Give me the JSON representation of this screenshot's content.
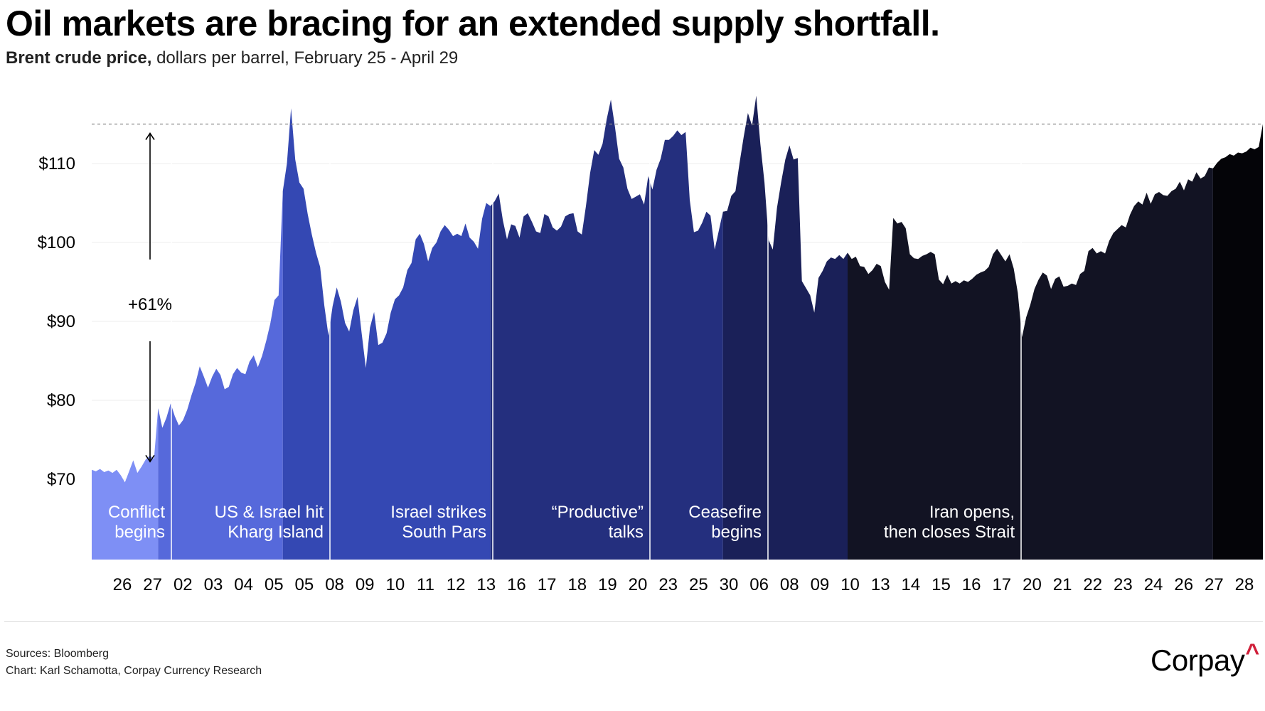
{
  "title": "Oil markets are bracing for an extended supply shortfall.",
  "subtitle_bold": "Brent crude price,",
  "subtitle_rest": " dollars per barrel, February 25 - April 29",
  "chart_data": {
    "type": "area",
    "title": "Oil markets are bracing for an extended supply shortfall.",
    "subtitle": "Brent crude price, dollars per barrel, February 25 - April 29",
    "ylim": [
      60,
      120
    ],
    "yticks": [
      70,
      80,
      90,
      100,
      110
    ],
    "ytick_labels": [
      "$70",
      "$80",
      "$90",
      "$100",
      "$110"
    ],
    "x_labels": [
      "26",
      "27",
      "02",
      "03",
      "04",
      "05",
      "05",
      "08",
      "09",
      "10",
      "11",
      "12",
      "13",
      "16",
      "17",
      "18",
      "19",
      "20",
      "23",
      "25",
      "30",
      "06",
      "08",
      "09",
      "10",
      "13",
      "14",
      "15",
      "16",
      "17",
      "20",
      "21",
      "22",
      "23",
      "24",
      "26",
      "27",
      "28"
    ],
    "reference_line": 115,
    "annotation": "+61%",
    "annotation_range": [
      71.5,
      115
    ],
    "series": [
      {
        "name": "Brent crude",
        "values": [
          71.2,
          71.0,
          71.3,
          70.9,
          71.1,
          70.8,
          71.2,
          70.5,
          69.6,
          71.0,
          72.4,
          70.8,
          71.6,
          72.5,
          73.0,
          72.6,
          79.0,
          76.5,
          77.8,
          79.6,
          78.0,
          76.8,
          77.5,
          78.8,
          80.6,
          82.2,
          84.3,
          83.0,
          81.6,
          83.0,
          84.0,
          83.2,
          81.4,
          81.7,
          83.3,
          84.1,
          83.5,
          83.3,
          84.9,
          85.7,
          84.2,
          85.6,
          87.5,
          89.7,
          92.7,
          93.3,
          106.5,
          110.0,
          117.0,
          110.5,
          107.6,
          106.8,
          103.6,
          101.0,
          98.7,
          96.9,
          92.0,
          88.2,
          91.9,
          94.3,
          92.5,
          89.8,
          88.7,
          91.4,
          93.1,
          88.5,
          84.1,
          89.2,
          91.2,
          87.0,
          87.3,
          88.5,
          91.1,
          92.8,
          93.3,
          94.3,
          96.5,
          97.4,
          100.4,
          101.1,
          99.8,
          97.6,
          99.3,
          100.0,
          101.4,
          102.2,
          101.6,
          100.8,
          101.1,
          100.8,
          102.4,
          100.6,
          100.1,
          99.2,
          103.0,
          105.0,
          104.6,
          105.2,
          106.2,
          102.8,
          100.4,
          102.3,
          102.1,
          100.6,
          103.3,
          103.7,
          102.6,
          101.4,
          101.2,
          103.6,
          103.3,
          101.9,
          101.5,
          102.0,
          103.3,
          103.6,
          103.7,
          101.4,
          101.0,
          104.6,
          108.8,
          111.7,
          111.1,
          112.5,
          115.6,
          118.1,
          114.6,
          110.6,
          109.5,
          106.8,
          105.5,
          105.8,
          106.1,
          104.8,
          108.4,
          106.7,
          109.2,
          110.6,
          113.0,
          113.0,
          113.5,
          114.2,
          113.6,
          114.0,
          105.4,
          101.3,
          101.5,
          102.5,
          103.9,
          103.4,
          99.1,
          101.5,
          103.9,
          104.0,
          105.9,
          106.5,
          110.1,
          113.4,
          116.4,
          114.8,
          118.6,
          112.5,
          107.6,
          100.3,
          99.1,
          104.4,
          107.6,
          110.5,
          112.3,
          110.5,
          110.7,
          95.1,
          94.2,
          93.3,
          91.1,
          95.5,
          96.4,
          97.6,
          98.1,
          97.9,
          98.4,
          97.9,
          98.7,
          97.9,
          98.2,
          97.0,
          96.9,
          96.0,
          96.5,
          97.3,
          97.0,
          95.0,
          94.0,
          103.1,
          102.4,
          102.6,
          101.8,
          98.5,
          98.0,
          97.9,
          98.3,
          98.5,
          98.8,
          98.5,
          95.3,
          94.7,
          95.9,
          94.8,
          95.1,
          94.8,
          95.2,
          95.0,
          95.4,
          95.9,
          96.2,
          96.4,
          96.9,
          98.5,
          99.2,
          98.4,
          97.6,
          98.5,
          96.7,
          93.6,
          88.0,
          90.5,
          92.1,
          94.1,
          95.3,
          96.2,
          95.8,
          94.1,
          95.4,
          95.7,
          94.4,
          94.5,
          94.8,
          94.6,
          96.0,
          96.4,
          98.9,
          99.3,
          98.6,
          98.9,
          98.6,
          100.2,
          101.2,
          101.7,
          102.2,
          101.9,
          103.5,
          104.6,
          105.2,
          104.8,
          106.3,
          104.9,
          106.1,
          106.4,
          106.0,
          105.9,
          106.5,
          106.8,
          107.7,
          106.6,
          108.0,
          107.7,
          108.9,
          108.1,
          108.4,
          109.5,
          109.4,
          110.1,
          110.6,
          110.8,
          111.2,
          111.0,
          111.4,
          111.3,
          111.5,
          112.0,
          111.8,
          112.1,
          115.0
        ]
      }
    ],
    "regions": [
      {
        "label_lines": [
          "Conflict",
          "begins"
        ],
        "color": "#7e8ff5"
      },
      {
        "label_lines": [
          "US & Israel hit",
          "Kharg Island"
        ],
        "color": "#5669db"
      },
      {
        "label_lines": [
          "Israel strikes",
          "South Pars"
        ],
        "color": "#3448b3"
      },
      {
        "label_lines": [
          "“Productive”",
          "talks"
        ],
        "color": "#242f7e"
      },
      {
        "label_lines": [
          "Ceasefire",
          "begins"
        ],
        "color": "#1a2058"
      },
      {
        "label_lines": [
          "Iran opens,",
          "then closes Strait"
        ],
        "color": "#121323"
      },
      {
        "label_lines": [
          "",
          ""
        ],
        "color": "#040408"
      }
    ]
  },
  "footer": {
    "sources": "Sources: Bloomberg",
    "credit": "Chart: Karl Schamotta, Corpay Currency Research"
  },
  "logo": {
    "text": "Corpay",
    "mark": "^"
  }
}
